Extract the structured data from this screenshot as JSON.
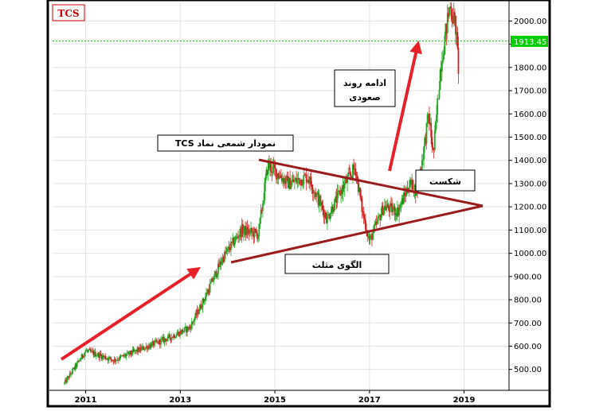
{
  "chart_data": {
    "type": "candlestick",
    "symbol_badge": "TCS",
    "y_ticks": [
      500,
      600,
      700,
      800,
      900,
      1000,
      1100,
      1200,
      1300,
      1400,
      1500,
      1600,
      1700,
      1800,
      1900,
      2000
    ],
    "y_tick_labels": [
      "500.00",
      "600.00",
      "700.00",
      "800.00",
      "900.00",
      "1000.00",
      "1100.00",
      "1200.00",
      "1300.00",
      "1400.00",
      "1500.00",
      "1600.00",
      "1700.00",
      "1800.00",
      "1900.00",
      "2000.00"
    ],
    "x_tick_labels": [
      "2011",
      "2013",
      "2015",
      "2017",
      "2019"
    ],
    "x_tick_years": [
      2011,
      2013,
      2015,
      2017,
      2019
    ],
    "ylim": [
      410,
      2080
    ],
    "xlim": [
      2010.3,
      2019.95
    ],
    "price_line": {
      "value": 1913.45,
      "label": "1913.45",
      "color": "#00cc00"
    },
    "key_points": [
      {
        "date": 2010.55,
        "price": 440
      },
      {
        "date": 2011.0,
        "price": 580
      },
      {
        "date": 2011.6,
        "price": 540
      },
      {
        "date": 2012.2,
        "price": 590
      },
      {
        "date": 2012.8,
        "price": 640
      },
      {
        "date": 2013.2,
        "price": 680
      },
      {
        "date": 2013.5,
        "price": 800
      },
      {
        "date": 2013.9,
        "price": 980
      },
      {
        "date": 2014.3,
        "price": 1100
      },
      {
        "date": 2014.65,
        "price": 1080
      },
      {
        "date": 2014.85,
        "price": 1380
      },
      {
        "date": 2015.3,
        "price": 1300
      },
      {
        "date": 2015.7,
        "price": 1330
      },
      {
        "date": 2016.1,
        "price": 1150
      },
      {
        "date": 2016.4,
        "price": 1270
      },
      {
        "date": 2016.7,
        "price": 1370
      },
      {
        "date": 2016.85,
        "price": 1180
      },
      {
        "date": 2017.0,
        "price": 1050
      },
      {
        "date": 2017.3,
        "price": 1200
      },
      {
        "date": 2017.6,
        "price": 1180
      },
      {
        "date": 2017.85,
        "price": 1300
      },
      {
        "date": 2018.0,
        "price": 1270
      },
      {
        "date": 2018.15,
        "price": 1450
      },
      {
        "date": 2018.25,
        "price": 1600
      },
      {
        "date": 2018.35,
        "price": 1420
      },
      {
        "date": 2018.5,
        "price": 1800
      },
      {
        "date": 2018.7,
        "price": 2070
      },
      {
        "date": 2018.82,
        "price": 1980
      },
      {
        "date": 2018.88,
        "price": 1800
      }
    ],
    "annotations": {
      "chart_label": "نمودار شمعی نماد TCS",
      "continuation_label": [
        "ادامه روند",
        "صعودی"
      ],
      "breakout_label": "شکست",
      "pattern_label": "الگوی مثلث"
    },
    "colors": {
      "up": "#22aa22",
      "down": "#cc2222",
      "arrow": "#e8202a",
      "triangle": "#9b1c1c",
      "badge": "#cc0000"
    }
  }
}
